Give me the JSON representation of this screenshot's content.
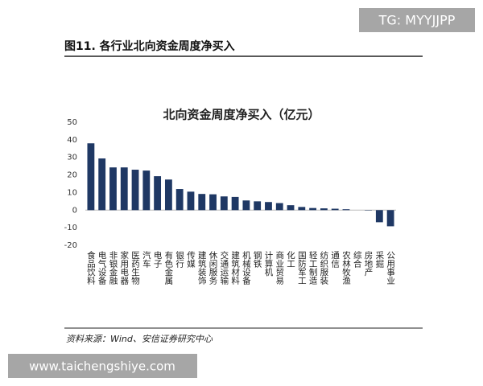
{
  "watermark_top": "TG: MYYJJPP",
  "header": {
    "title": "图11. 各行业北向资金周度净买入"
  },
  "chart_data": {
    "type": "bar",
    "title": "北向资金周度净买入（亿元）",
    "categories": [
      "食品饮料",
      "电气设备",
      "非银金融",
      "家用电器",
      "医药生物",
      "汽车",
      "电子",
      "有色金属",
      "银行",
      "传媒",
      "建筑装饰",
      "休闲服务",
      "交通运输",
      "建筑材料",
      "机械设备",
      "钢铁",
      "计算机",
      "商业贸易",
      "化工",
      "国防军工",
      "轻工制造",
      "纺织服装",
      "通信",
      "农林牧渔",
      "综合",
      "房地产",
      "采掘",
      "公用事业"
    ],
    "values": [
      38,
      29.4,
      24.3,
      24.3,
      23,
      22.5,
      19.3,
      17.4,
      12,
      10.5,
      9.2,
      9,
      7.8,
      7.5,
      5.5,
      5,
      4.6,
      4,
      2.8,
      1.8,
      1.2,
      1,
      0.8,
      0.5,
      0,
      -0.2,
      -6.9,
      -9.2
    ],
    "color": "#1f3864",
    "ylim": [
      -20,
      50
    ],
    "yticks": [
      -20,
      -10,
      0,
      10,
      20,
      30,
      40,
      50
    ],
    "grid": false
  },
  "source": "资料来源：Wind、安信证券研究中心",
  "watermark_bottom": "www.taichengshiye.com"
}
